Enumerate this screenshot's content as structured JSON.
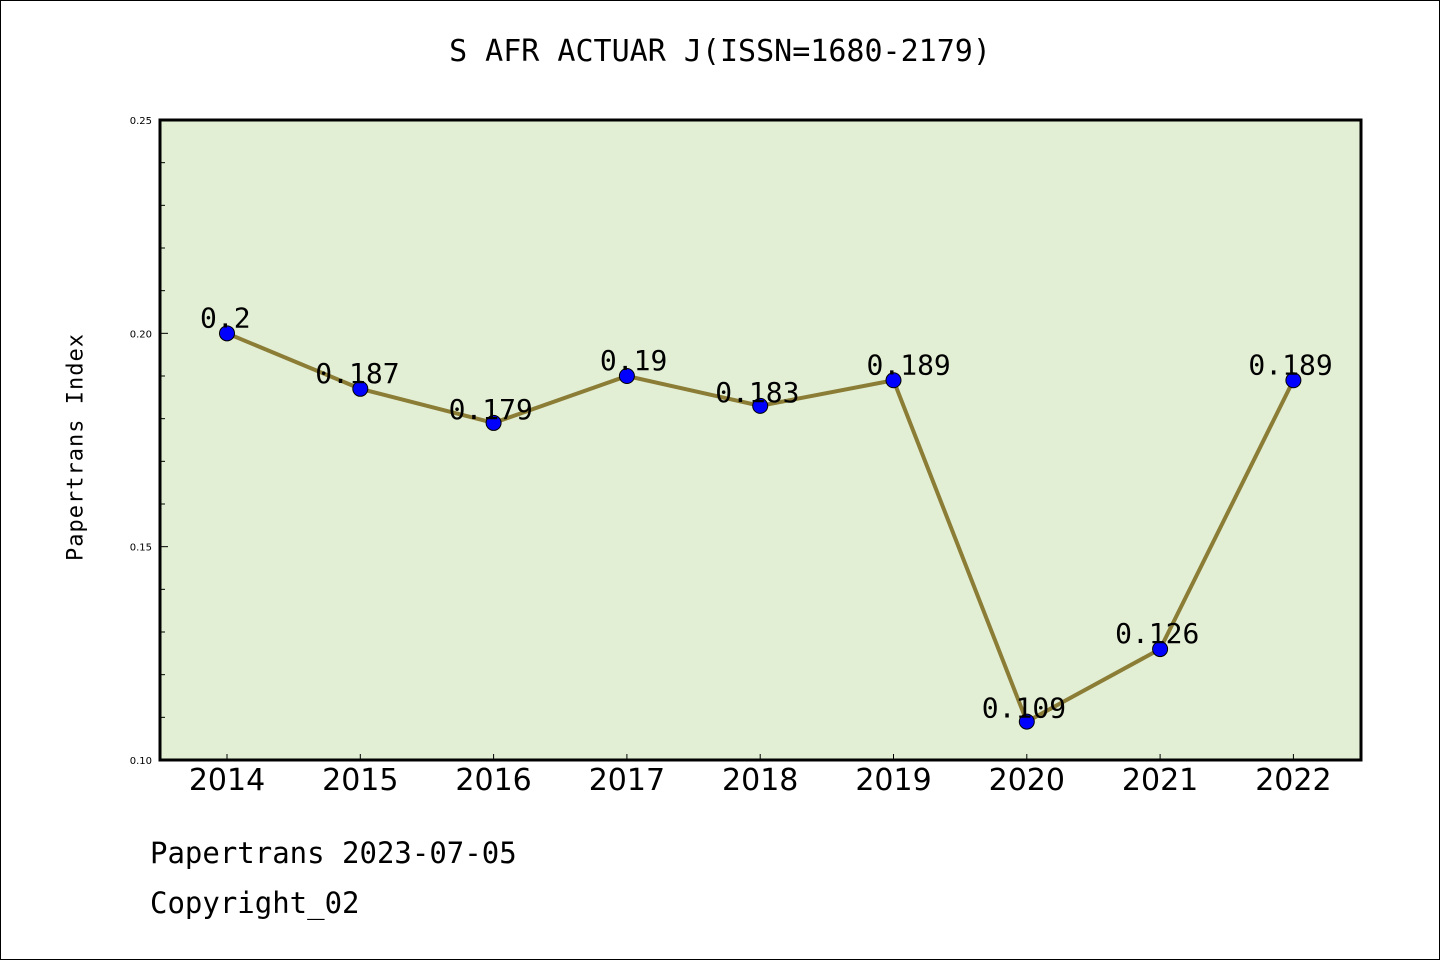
{
  "chart_data": {
    "type": "line",
    "title": "S AFR ACTUAR J(ISSN=1680-2179)",
    "ylabel": "Papertrans Index",
    "xlabel": "",
    "categories": [
      "2014",
      "2015",
      "2016",
      "2017",
      "2018",
      "2019",
      "2020",
      "2021",
      "2022"
    ],
    "values": [
      0.2,
      0.187,
      0.179,
      0.19,
      0.183,
      0.189,
      0.109,
      0.126,
      0.189
    ],
    "data_labels": [
      "0.2",
      "0.187",
      "0.179",
      "0.19",
      "0.183",
      "0.189",
      "0.109",
      "0.126",
      "0.189"
    ],
    "ylim": [
      0.1,
      0.25
    ],
    "y_ticks": [
      "0.10",
      "0.15",
      "0.20",
      "0.25"
    ],
    "grid": false,
    "colors": {
      "plot_bg": "#e2efd4",
      "line": "#8b7d36",
      "marker": "#0000ff"
    }
  },
  "footer": {
    "line1": "Papertrans 2023-07-05",
    "line2": "Copyright_02"
  }
}
